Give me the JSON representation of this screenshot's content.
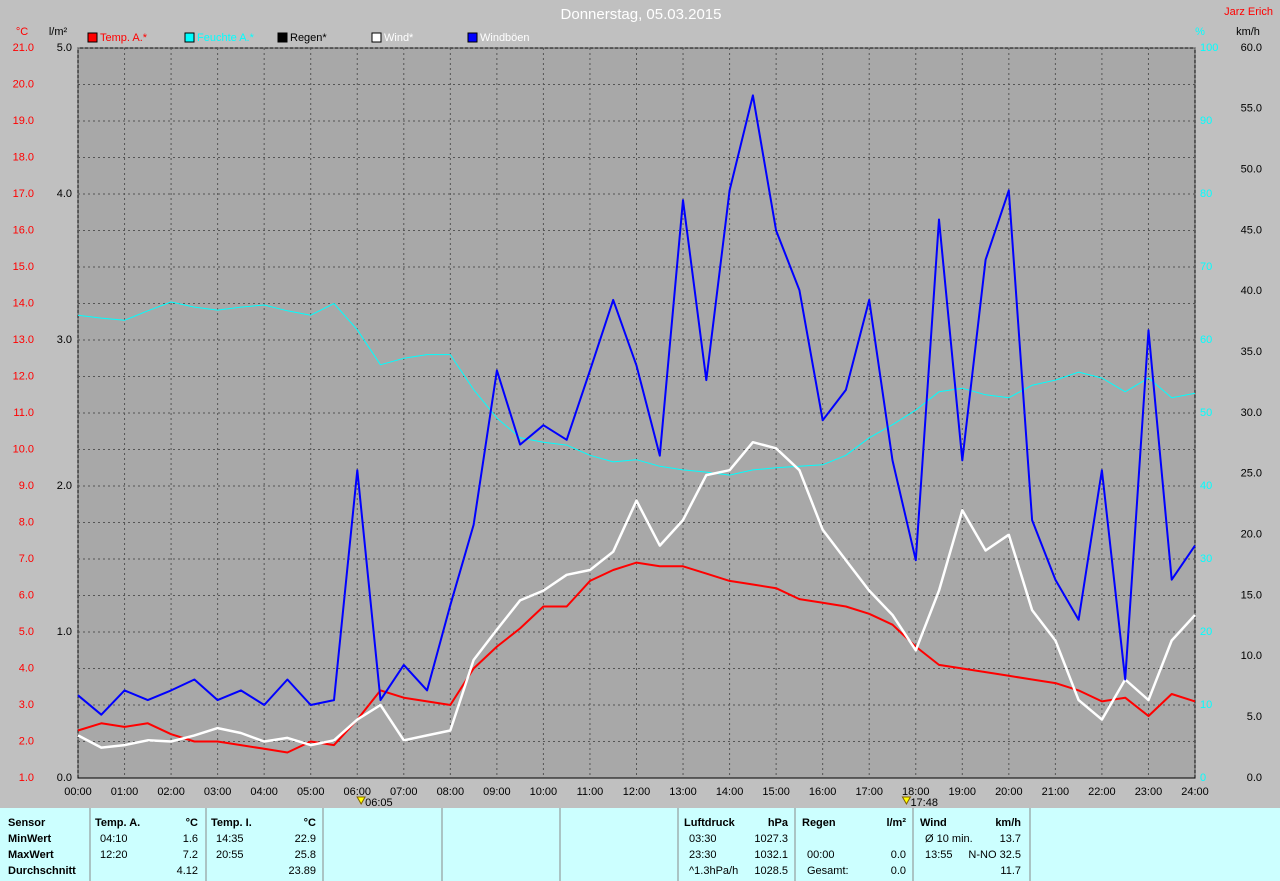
{
  "chart_data": {
    "type": "line",
    "title": "Donnerstag, 05.03.2015",
    "author": "Jarz Erich",
    "y_label": "°C",
    "y2_label": "l/m²",
    "y3_label": "%",
    "y4_label": "km/h",
    "grid": true,
    "xlim": [
      0,
      24
    ],
    "xticks": [
      {
        "value": 0,
        "label": "00:00"
      },
      {
        "value": 1,
        "label": "01:00"
      },
      {
        "value": 2,
        "label": "02:00"
      },
      {
        "value": 3,
        "label": "03:00"
      },
      {
        "value": 4,
        "label": "04:00"
      },
      {
        "value": 5,
        "label": "05:00"
      },
      {
        "value": 6,
        "label": "06:00"
      },
      {
        "value": 7,
        "label": "07:00"
      },
      {
        "value": 8,
        "label": "08:00"
      },
      {
        "value": 9,
        "label": "09:00"
      },
      {
        "value": 10,
        "label": "10:00"
      },
      {
        "value": 11,
        "label": "11:00"
      },
      {
        "value": 12,
        "label": "12:00"
      },
      {
        "value": 13,
        "label": "13:00"
      },
      {
        "value": 14,
        "label": "14:00"
      },
      {
        "value": 15,
        "label": "15:00"
      },
      {
        "value": 16,
        "label": "16:00"
      },
      {
        "value": 17,
        "label": "17:00"
      },
      {
        "value": 18,
        "label": "18:00"
      },
      {
        "value": 19,
        "label": "19:00"
      },
      {
        "value": 20,
        "label": "20:00"
      },
      {
        "value": 21,
        "label": "21:00"
      },
      {
        "value": 22,
        "label": "22:00"
      },
      {
        "value": 23,
        "label": "23:00"
      },
      {
        "value": 24,
        "label": "24:00"
      }
    ],
    "ylim": [
      1,
      21
    ],
    "yticks": [
      {
        "value": 1,
        "label": "1.0"
      },
      {
        "value": 2,
        "label": "2.0"
      },
      {
        "value": 3,
        "label": "3.0"
      },
      {
        "value": 4,
        "label": "4.0"
      },
      {
        "value": 5,
        "label": "5.0"
      },
      {
        "value": 6,
        "label": "6.0"
      },
      {
        "value": 7,
        "label": "7.0"
      },
      {
        "value": 8,
        "label": "8.0"
      },
      {
        "value": 9,
        "label": "9.0"
      },
      {
        "value": 10,
        "label": "10.0"
      },
      {
        "value": 11,
        "label": "11.0"
      },
      {
        "value": 12,
        "label": "12.0"
      },
      {
        "value": 13,
        "label": "13.0"
      },
      {
        "value": 14,
        "label": "14.0"
      },
      {
        "value": 15,
        "label": "15.0"
      },
      {
        "value": 16,
        "label": "16.0"
      },
      {
        "value": 17,
        "label": "17.0"
      },
      {
        "value": 18,
        "label": "18.0"
      },
      {
        "value": 19,
        "label": "19.0"
      },
      {
        "value": 20,
        "label": "20.0"
      },
      {
        "value": 21,
        "label": "21.0"
      }
    ],
    "y2lim": [
      0,
      5
    ],
    "y2ticks": [
      {
        "value": 0,
        "label": "0.0"
      },
      {
        "value": 1,
        "label": "1.0"
      },
      {
        "value": 2,
        "label": "2.0"
      },
      {
        "value": 3,
        "label": "3.0"
      },
      {
        "value": 4,
        "label": "4.0"
      },
      {
        "value": 5,
        "label": "5.0"
      }
    ],
    "y3lim": [
      0,
      100
    ],
    "y3ticks": [
      0,
      10,
      20,
      30,
      40,
      50,
      60,
      70,
      80,
      90,
      100
    ],
    "y4lim": [
      0,
      60
    ],
    "y4ticks": [
      {
        "value": 0,
        "label": "0.0"
      },
      {
        "value": 5,
        "label": "5.0"
      },
      {
        "value": 10,
        "label": "10.0"
      },
      {
        "value": 15,
        "label": "15.0"
      },
      {
        "value": 20,
        "label": "20.0"
      },
      {
        "value": 25,
        "label": "25.0"
      },
      {
        "value": 30,
        "label": "30.0"
      },
      {
        "value": 35,
        "label": "35.0"
      },
      {
        "value": 40,
        "label": "40.0"
      },
      {
        "value": 45,
        "label": "45.0"
      },
      {
        "value": 50,
        "label": "50.0"
      },
      {
        "value": 55,
        "label": "55.0"
      },
      {
        "value": 60,
        "label": "60.0"
      }
    ],
    "annotations": [
      {
        "x": 6.0833,
        "label": "06:05"
      },
      {
        "x": 17.8,
        "label": "17:48"
      }
    ],
    "x": [
      0,
      0.5,
      1,
      1.5,
      2,
      2.5,
      3,
      3.5,
      4,
      4.5,
      5,
      5.5,
      6,
      6.5,
      7,
      7.5,
      8,
      8.5,
      9,
      9.5,
      10,
      10.5,
      11,
      11.5,
      12,
      12.5,
      13,
      13.5,
      14,
      14.5,
      15,
      15.5,
      16,
      16.5,
      17,
      17.5,
      18,
      18.5,
      19,
      19.5,
      20,
      20.5,
      21,
      21.5,
      22,
      22.5,
      23,
      23.5,
      24
    ],
    "series": [
      {
        "name": "Temp. A.*",
        "color": "#ff0000",
        "axis": "y",
        "width": 2,
        "values": [
          2.3,
          2.5,
          2.4,
          2.5,
          2.2,
          2.0,
          2.0,
          1.9,
          1.8,
          1.7,
          2.0,
          1.9,
          2.6,
          3.4,
          3.2,
          3.1,
          3.0,
          4.0,
          4.6,
          5.1,
          5.7,
          5.7,
          6.4,
          6.7,
          6.9,
          6.8,
          6.8,
          6.6,
          6.4,
          6.3,
          6.2,
          5.9,
          5.8,
          5.7,
          5.5,
          5.2,
          4.6,
          4.1,
          4.0,
          3.9,
          3.8,
          3.7,
          3.6,
          3.4,
          3.1,
          3.2,
          2.7,
          3.3,
          3.1
        ]
      },
      {
        "name": "Feuchte A.*",
        "color": "#00ffff",
        "axis": "y3",
        "width": 1,
        "values": [
          63.4,
          63.0,
          62.7,
          64.0,
          65.2,
          64.5,
          64.1,
          64.5,
          64.8,
          64.0,
          63.4,
          65.0,
          61.4,
          56.6,
          57.5,
          58.0,
          58.0,
          53.2,
          49.3,
          46.6,
          46.0,
          45.6,
          44.2,
          43.3,
          43.6,
          42.7,
          42.2,
          41.9,
          41.5,
          42.2,
          42.5,
          42.7,
          42.9,
          44.2,
          46.6,
          48.4,
          50.4,
          52.9,
          53.4,
          52.5,
          52.1,
          53.8,
          54.5,
          55.6,
          54.8,
          52.9,
          54.8,
          52.1,
          52.7
        ]
      },
      {
        "name": "Regen*",
        "color": "#000000",
        "axis": "y2",
        "width": 1,
        "values": [
          0,
          0,
          0,
          0,
          0,
          0,
          0,
          0,
          0,
          0,
          0,
          0,
          0,
          0,
          0,
          0,
          0,
          0,
          0,
          0,
          0,
          0,
          0,
          0,
          0,
          0,
          0,
          0,
          0,
          0,
          0,
          0,
          0,
          0,
          0,
          0,
          0,
          0,
          0,
          0,
          0,
          0,
          0,
          0,
          0,
          0,
          0,
          0,
          0
        ]
      },
      {
        "name": "Wind*",
        "color": "#ffffff",
        "axis": "y4",
        "width": 2.5,
        "values": [
          3.5,
          2.5,
          2.7,
          3.1,
          3.0,
          3.5,
          4.1,
          3.7,
          3.0,
          3.3,
          2.7,
          3.1,
          4.8,
          6.0,
          3.1,
          3.5,
          3.9,
          9.7,
          12.2,
          14.6,
          15.4,
          16.7,
          17.1,
          18.6,
          22.8,
          19.1,
          21.2,
          24.9,
          25.3,
          27.6,
          27.1,
          25.3,
          20.4,
          17.9,
          15.4,
          13.4,
          10.5,
          15.4,
          22.0,
          18.7,
          20.0,
          13.8,
          11.3,
          6.4,
          4.8,
          8.1,
          6.4,
          11.3,
          13.4
        ]
      },
      {
        "name": "Windböen",
        "color": "#0000ff",
        "axis": "y4",
        "width": 2,
        "values": [
          6.8,
          5.2,
          7.2,
          6.4,
          7.2,
          8.1,
          6.4,
          7.2,
          6.0,
          8.1,
          6.0,
          6.4,
          25.3,
          6.4,
          9.3,
          7.2,
          14.2,
          20.8,
          33.5,
          27.4,
          29.0,
          27.8,
          33.5,
          39.3,
          33.9,
          26.5,
          47.5,
          32.7,
          48.3,
          56.1,
          45.0,
          40.1,
          29.4,
          31.9,
          39.3,
          26.1,
          17.9,
          45.9,
          26.1,
          42.6,
          48.3,
          21.2,
          16.3,
          13.0,
          25.3,
          8.1,
          36.8,
          16.3,
          19.1
        ]
      }
    ]
  },
  "stats": {
    "row_labels": [
      "Sensor",
      "MinWert",
      "MaxWert",
      "Durchschnitt"
    ],
    "blocks": [
      {
        "title": "Temp. A.",
        "unit": "°C",
        "min": {
          "time": "04:10",
          "value": "1.6"
        },
        "max": {
          "time": "12:20",
          "value": "7.2"
        },
        "avg": {
          "value": "4.12"
        }
      },
      {
        "title": "Temp. I.",
        "unit": "°C",
        "min": {
          "time": "14:35",
          "value": "22.9"
        },
        "max": {
          "time": "20:55",
          "value": "25.8"
        },
        "avg": {
          "value": "23.89"
        }
      },
      {
        "title": "Luftdruck",
        "unit": "hPa",
        "min": {
          "time": "03:30",
          "value": "1027.3"
        },
        "max": {
          "time": "23:30",
          "value": "1032.1"
        },
        "avg": {
          "time": "^1.3hPa/h",
          "value": "1028.5"
        }
      },
      {
        "title": "Regen",
        "unit": "l/m²",
        "max": {
          "time": "00:00",
          "value": "0.0"
        },
        "avg": {
          "time": "Gesamt:",
          "value": "0.0"
        }
      },
      {
        "title": "Wind",
        "unit": "km/h",
        "min": {
          "time": "Ø 10 min.",
          "value": "13.7"
        },
        "max": {
          "time": "13:55",
          "value": "N-NO 32.5"
        },
        "avg": {
          "value": "11.7"
        }
      }
    ]
  }
}
